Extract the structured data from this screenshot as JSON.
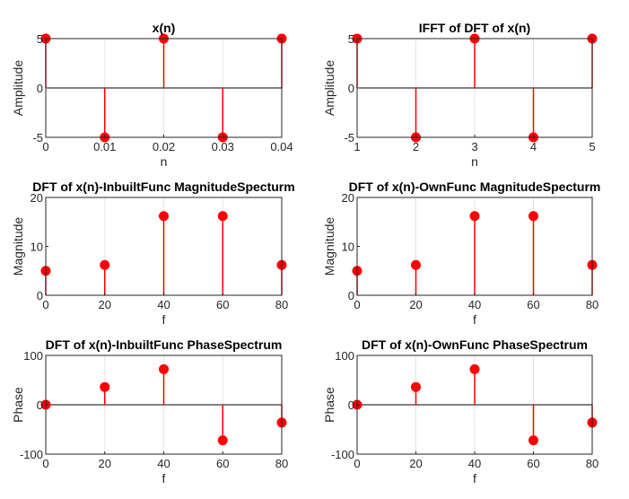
{
  "chart_data": [
    {
      "type": "stem",
      "title": "x(n)",
      "xlabel": "n",
      "ylabel": "Amplitude",
      "x": [
        0,
        0.01,
        0.02,
        0.03,
        0.04
      ],
      "y": [
        5,
        -5,
        5,
        -5,
        5
      ],
      "xlim": [
        0,
        0.04
      ],
      "ylim": [
        -5,
        5
      ],
      "xticks": [
        "0",
        "0.01",
        "0.02",
        "0.03",
        "0.04"
      ],
      "yticks": [
        "-5",
        "0",
        "5"
      ],
      "grid": "x",
      "color": "#ff0000"
    },
    {
      "type": "stem",
      "title": "IFFT of DFT of x(n)",
      "xlabel": "n",
      "ylabel": "Amplitude",
      "x": [
        1,
        2,
        3,
        4,
        5
      ],
      "y": [
        5,
        -5,
        5,
        -5,
        5
      ],
      "xlim": [
        1,
        5
      ],
      "ylim": [
        -5,
        5
      ],
      "xticks": [
        "1",
        "2",
        "3",
        "4",
        "5"
      ],
      "yticks": [
        "-5",
        "0",
        "5"
      ],
      "grid": "x",
      "color": "#ff0000"
    },
    {
      "type": "stem",
      "title": "DFT of x(n)-InbuiltFunc MagnitudeSpecturm",
      "xlabel": "f",
      "ylabel": "Magnitude",
      "x": [
        0,
        20,
        40,
        60,
        80
      ],
      "y": [
        5,
        6.2,
        16.2,
        16.2,
        6.2
      ],
      "xlim": [
        0,
        80
      ],
      "ylim": [
        0,
        20
      ],
      "xticks": [
        "0",
        "20",
        "40",
        "60",
        "80"
      ],
      "yticks": [
        "0",
        "10",
        "20"
      ],
      "grid": "x",
      "color": "#ff0000"
    },
    {
      "type": "stem",
      "title": "DFT of x(n)-OwnFunc MagnitudeSpecturm",
      "xlabel": "f",
      "ylabel": "Magnitude",
      "x": [
        0,
        20,
        40,
        60,
        80
      ],
      "y": [
        5,
        6.2,
        16.2,
        16.2,
        6.2
      ],
      "xlim": [
        0,
        80
      ],
      "ylim": [
        0,
        20
      ],
      "xticks": [
        "0",
        "20",
        "40",
        "60",
        "80"
      ],
      "yticks": [
        "0",
        "10",
        "20"
      ],
      "grid": "x",
      "color": "#ff0000"
    },
    {
      "type": "stem",
      "title": "DFT of x(n)-InbuiltFunc PhaseSpectrum",
      "xlabel": "f",
      "ylabel": "Phase",
      "x": [
        0,
        20,
        40,
        60,
        80
      ],
      "y": [
        0,
        36,
        72,
        -72,
        -36
      ],
      "xlim": [
        0,
        80
      ],
      "ylim": [
        -100,
        100
      ],
      "xticks": [
        "0",
        "20",
        "40",
        "60",
        "80"
      ],
      "yticks": [
        "-100",
        "0",
        "100"
      ],
      "grid": "x",
      "color": "#ff0000"
    },
    {
      "type": "stem",
      "title": "DFT of x(n)-OwnFunc PhaseSpectrum",
      "xlabel": "f",
      "ylabel": "Phase",
      "x": [
        0,
        20,
        40,
        60,
        80
      ],
      "y": [
        0,
        36,
        72,
        -72,
        -36
      ],
      "xlim": [
        0,
        80
      ],
      "ylim": [
        -100,
        100
      ],
      "xticks": [
        "0",
        "20",
        "40",
        "60",
        "80"
      ],
      "yticks": [
        "-100",
        "0",
        "100"
      ],
      "grid": "x",
      "color": "#ff0000"
    }
  ]
}
